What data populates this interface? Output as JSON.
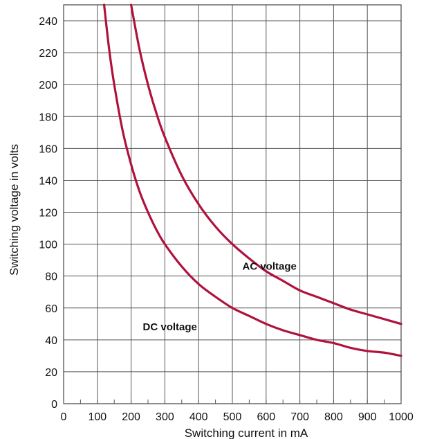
{
  "chart_data": {
    "type": "line",
    "xlabel": "Switching  current  in mA",
    "ylabel": "Switching voltage in volts",
    "xlim": [
      0,
      1000
    ],
    "ylim": [
      0,
      250
    ],
    "x_ticks": [
      0,
      100,
      200,
      300,
      400,
      500,
      600,
      700,
      800,
      900,
      1000
    ],
    "y_ticks": [
      0,
      20,
      40,
      60,
      80,
      100,
      120,
      140,
      160,
      180,
      200,
      220,
      240
    ],
    "grid": true,
    "curve_color": "#b0123c",
    "series": [
      {
        "name": "AC voltage",
        "x": [
          200,
          225,
          250,
          275,
          300,
          350,
          400,
          450,
          500,
          550,
          600,
          650,
          700,
          750,
          800,
          850,
          900,
          950,
          1000
        ],
        "y": [
          250,
          222,
          200,
          182,
          167,
          143,
          125,
          111,
          100,
          91,
          83,
          77,
          71,
          67,
          63,
          59,
          56,
          53,
          50
        ]
      },
      {
        "name": "DC voltage",
        "x": [
          120,
          135,
          150,
          175,
          200,
          225,
          250,
          275,
          300,
          350,
          400,
          450,
          500,
          550,
          600,
          650,
          700,
          750,
          800,
          850,
          900,
          950,
          1000
        ],
        "y": [
          250,
          222,
          200,
          171,
          150,
          133,
          120,
          109,
          100,
          86,
          75,
          67,
          60,
          55,
          50,
          46,
          43,
          40,
          38,
          35,
          33,
          32,
          30
        ]
      }
    ],
    "annotations": [
      {
        "text": "AC voltage",
        "x": 610,
        "y": 84
      },
      {
        "text": "DC voltage",
        "x": 315,
        "y": 46
      }
    ]
  }
}
